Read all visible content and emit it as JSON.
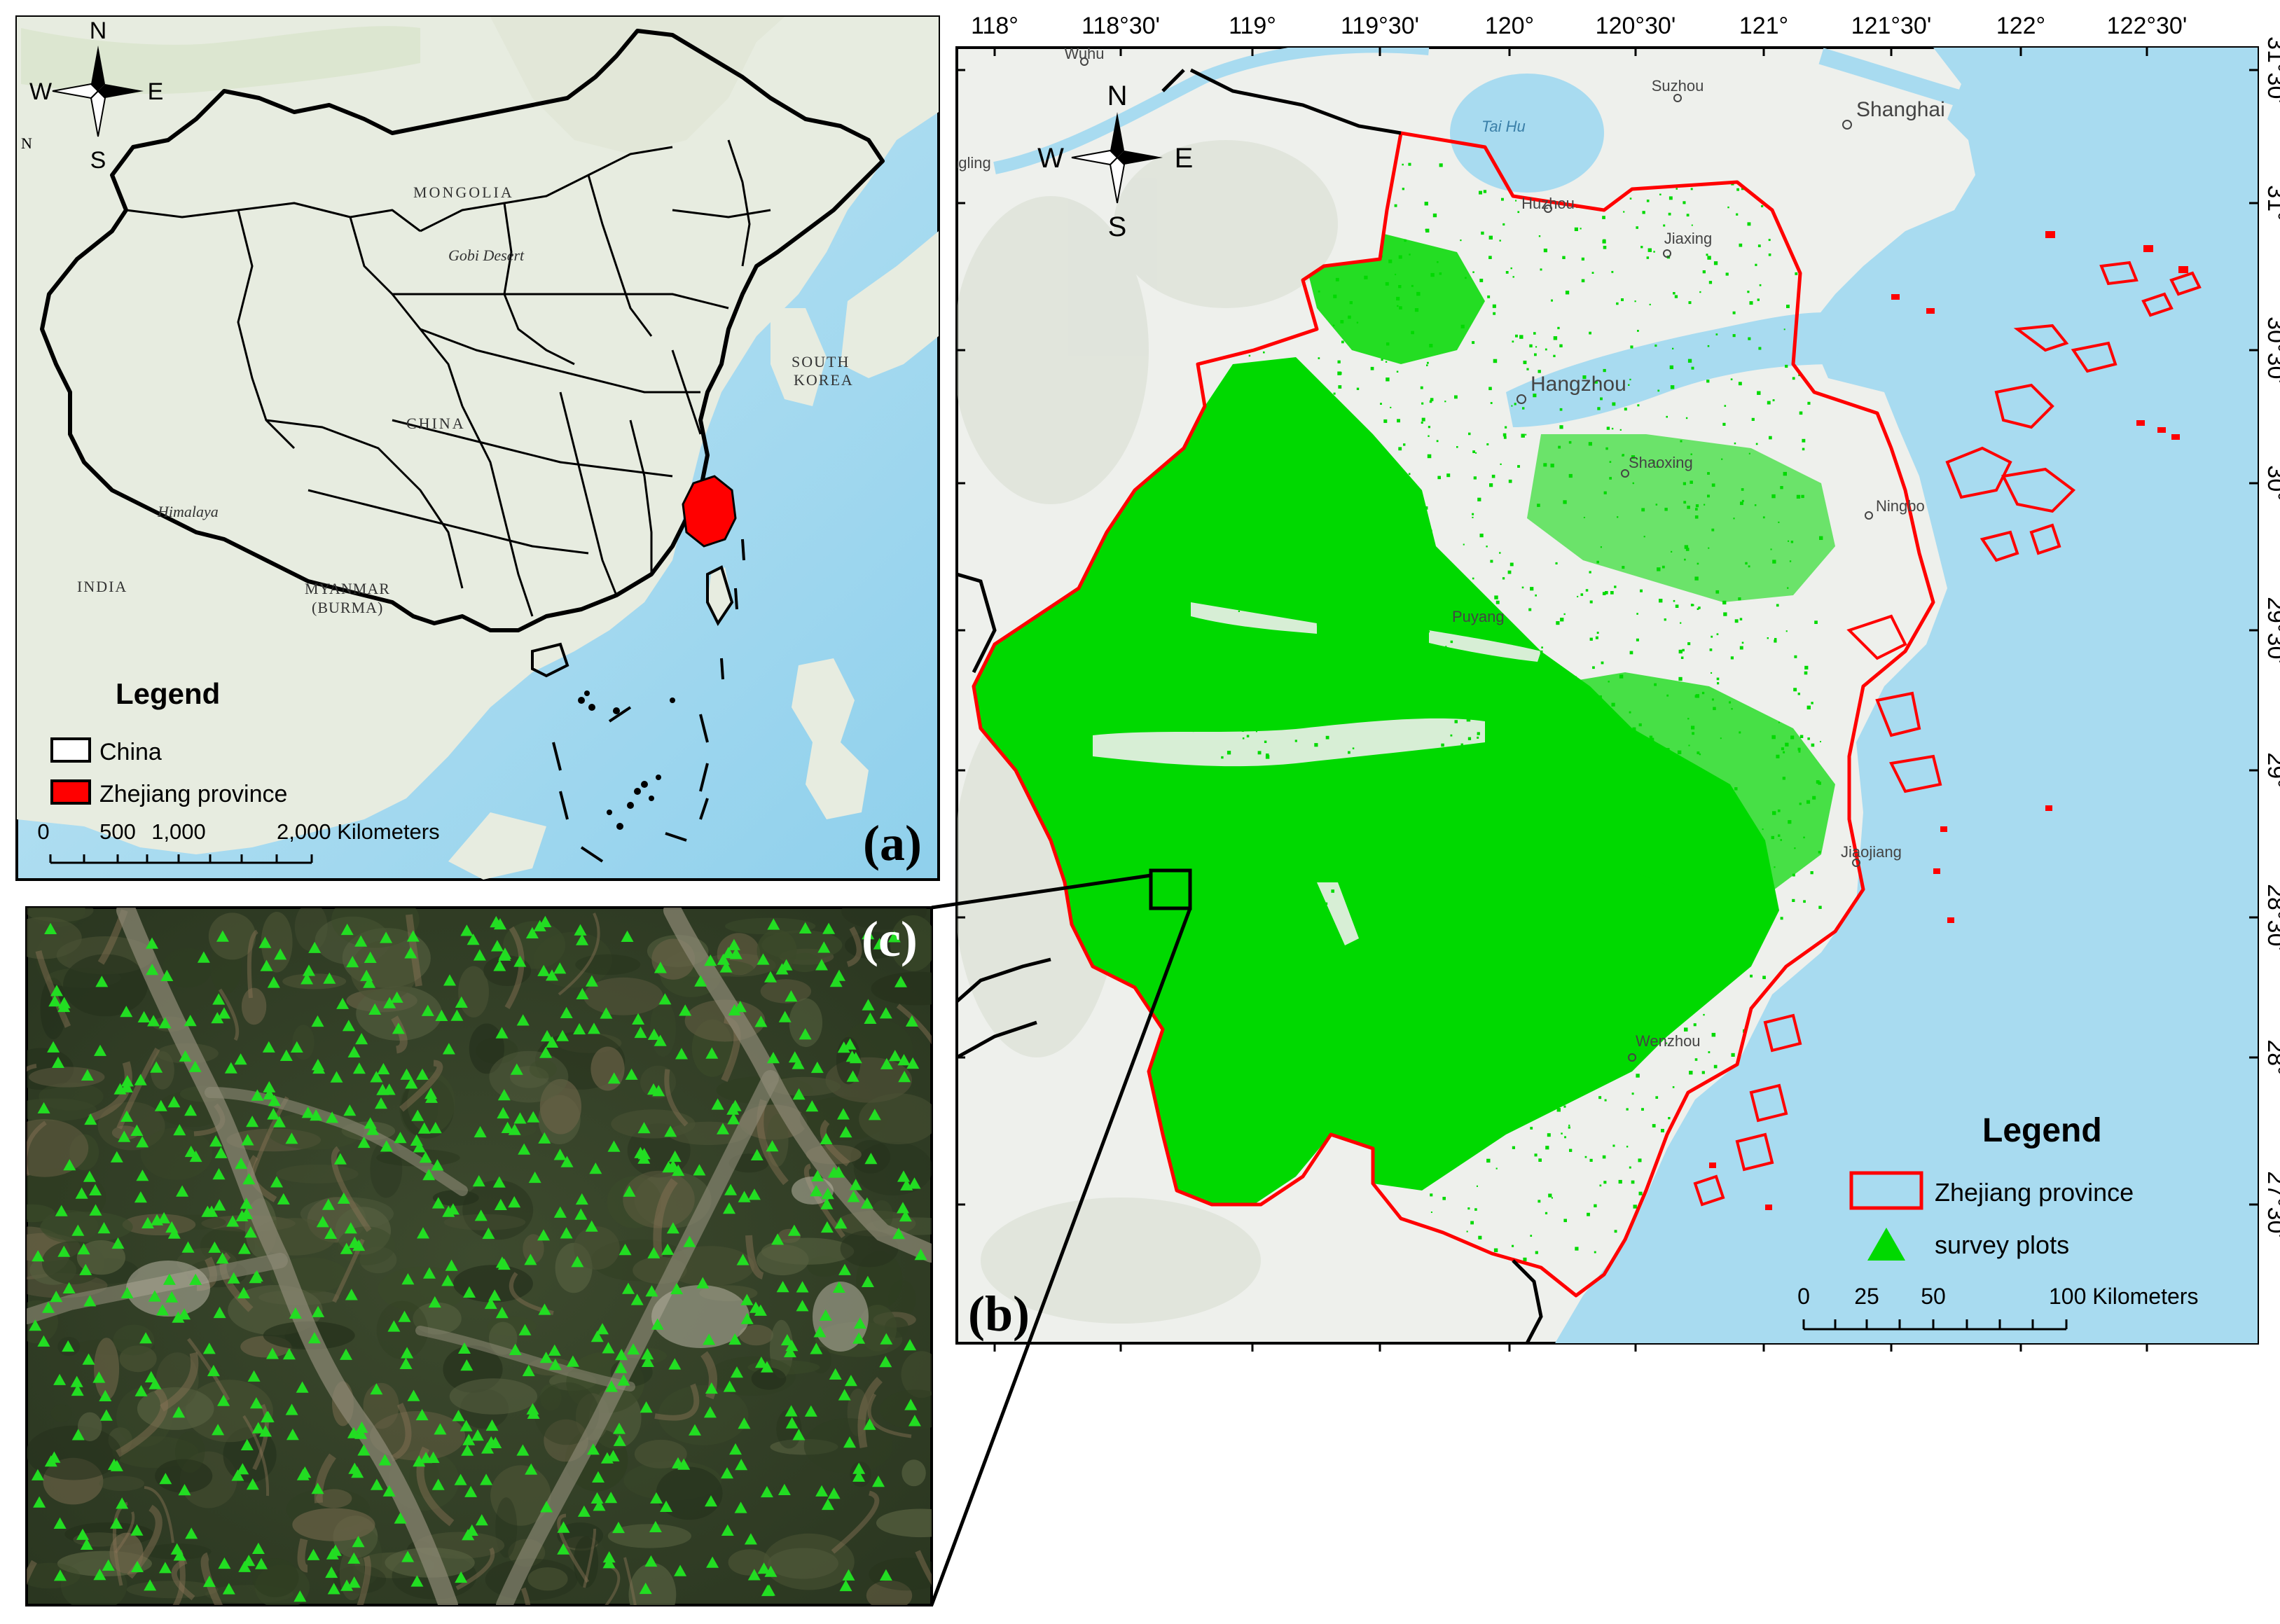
{
  "panel_a": {
    "label": "(a)",
    "north_arrow": {
      "n": "N",
      "s": "S",
      "e": "E",
      "w": "W",
      "icon": "north-arrow-icon"
    },
    "place_labels": [
      "MONGOLIA",
      "Gobi Desert",
      "SOUTH",
      "KOREA",
      "CHINA",
      "Himalaya",
      "INDIA",
      "MYANMAR",
      "(BURMA)"
    ],
    "legend": {
      "title": "Legend",
      "items": [
        {
          "label": "China",
          "color": "#ffffff"
        },
        {
          "label": "Zhejiang province",
          "color": "#ff0000"
        }
      ]
    },
    "scalebar": {
      "ticks": [
        "0",
        "500",
        "1,000",
        "2,000 Kilometers"
      ]
    },
    "stray_label": "N"
  },
  "panel_b": {
    "label": "(b)",
    "north_arrow": {
      "n": "N",
      "s": "S",
      "e": "E",
      "w": "W",
      "icon": "north-arrow-icon"
    },
    "lon_ticks": [
      "118°",
      "118°30'",
      "119°",
      "119°30'",
      "120°",
      "120°30'",
      "121°",
      "121°30'",
      "122°",
      "122°30'"
    ],
    "lat_ticks": [
      "31°30'",
      "31°",
      "30°30'",
      "30°",
      "29°30'",
      "29°",
      "28°30'",
      "28°",
      "27°30'"
    ],
    "cities": [
      "Wuhu",
      "Suzhou",
      "Shanghai",
      "Tai Hu",
      "Huzhou",
      "Jiaxing",
      "Hangzhou",
      "Shaoxing",
      "Ningbo",
      "Puyang",
      "Jiaojiang",
      "Wenzhou",
      "ngling"
    ],
    "legend": {
      "title": "Legend",
      "items": [
        {
          "label": "Zhejiang province",
          "color": "#ff0000"
        },
        {
          "label": "survey plots",
          "color": "#00cc00"
        }
      ]
    },
    "scalebar": {
      "ticks": [
        "0",
        "25",
        "50",
        "100 Kilometers"
      ]
    }
  },
  "panel_c": {
    "label": "(c)",
    "marker_color": "#22dd22"
  },
  "colors": {
    "sea": "#a8dbf0",
    "land": "#eef0ec",
    "green": "#00d900",
    "boundary": "#ff0000"
  }
}
